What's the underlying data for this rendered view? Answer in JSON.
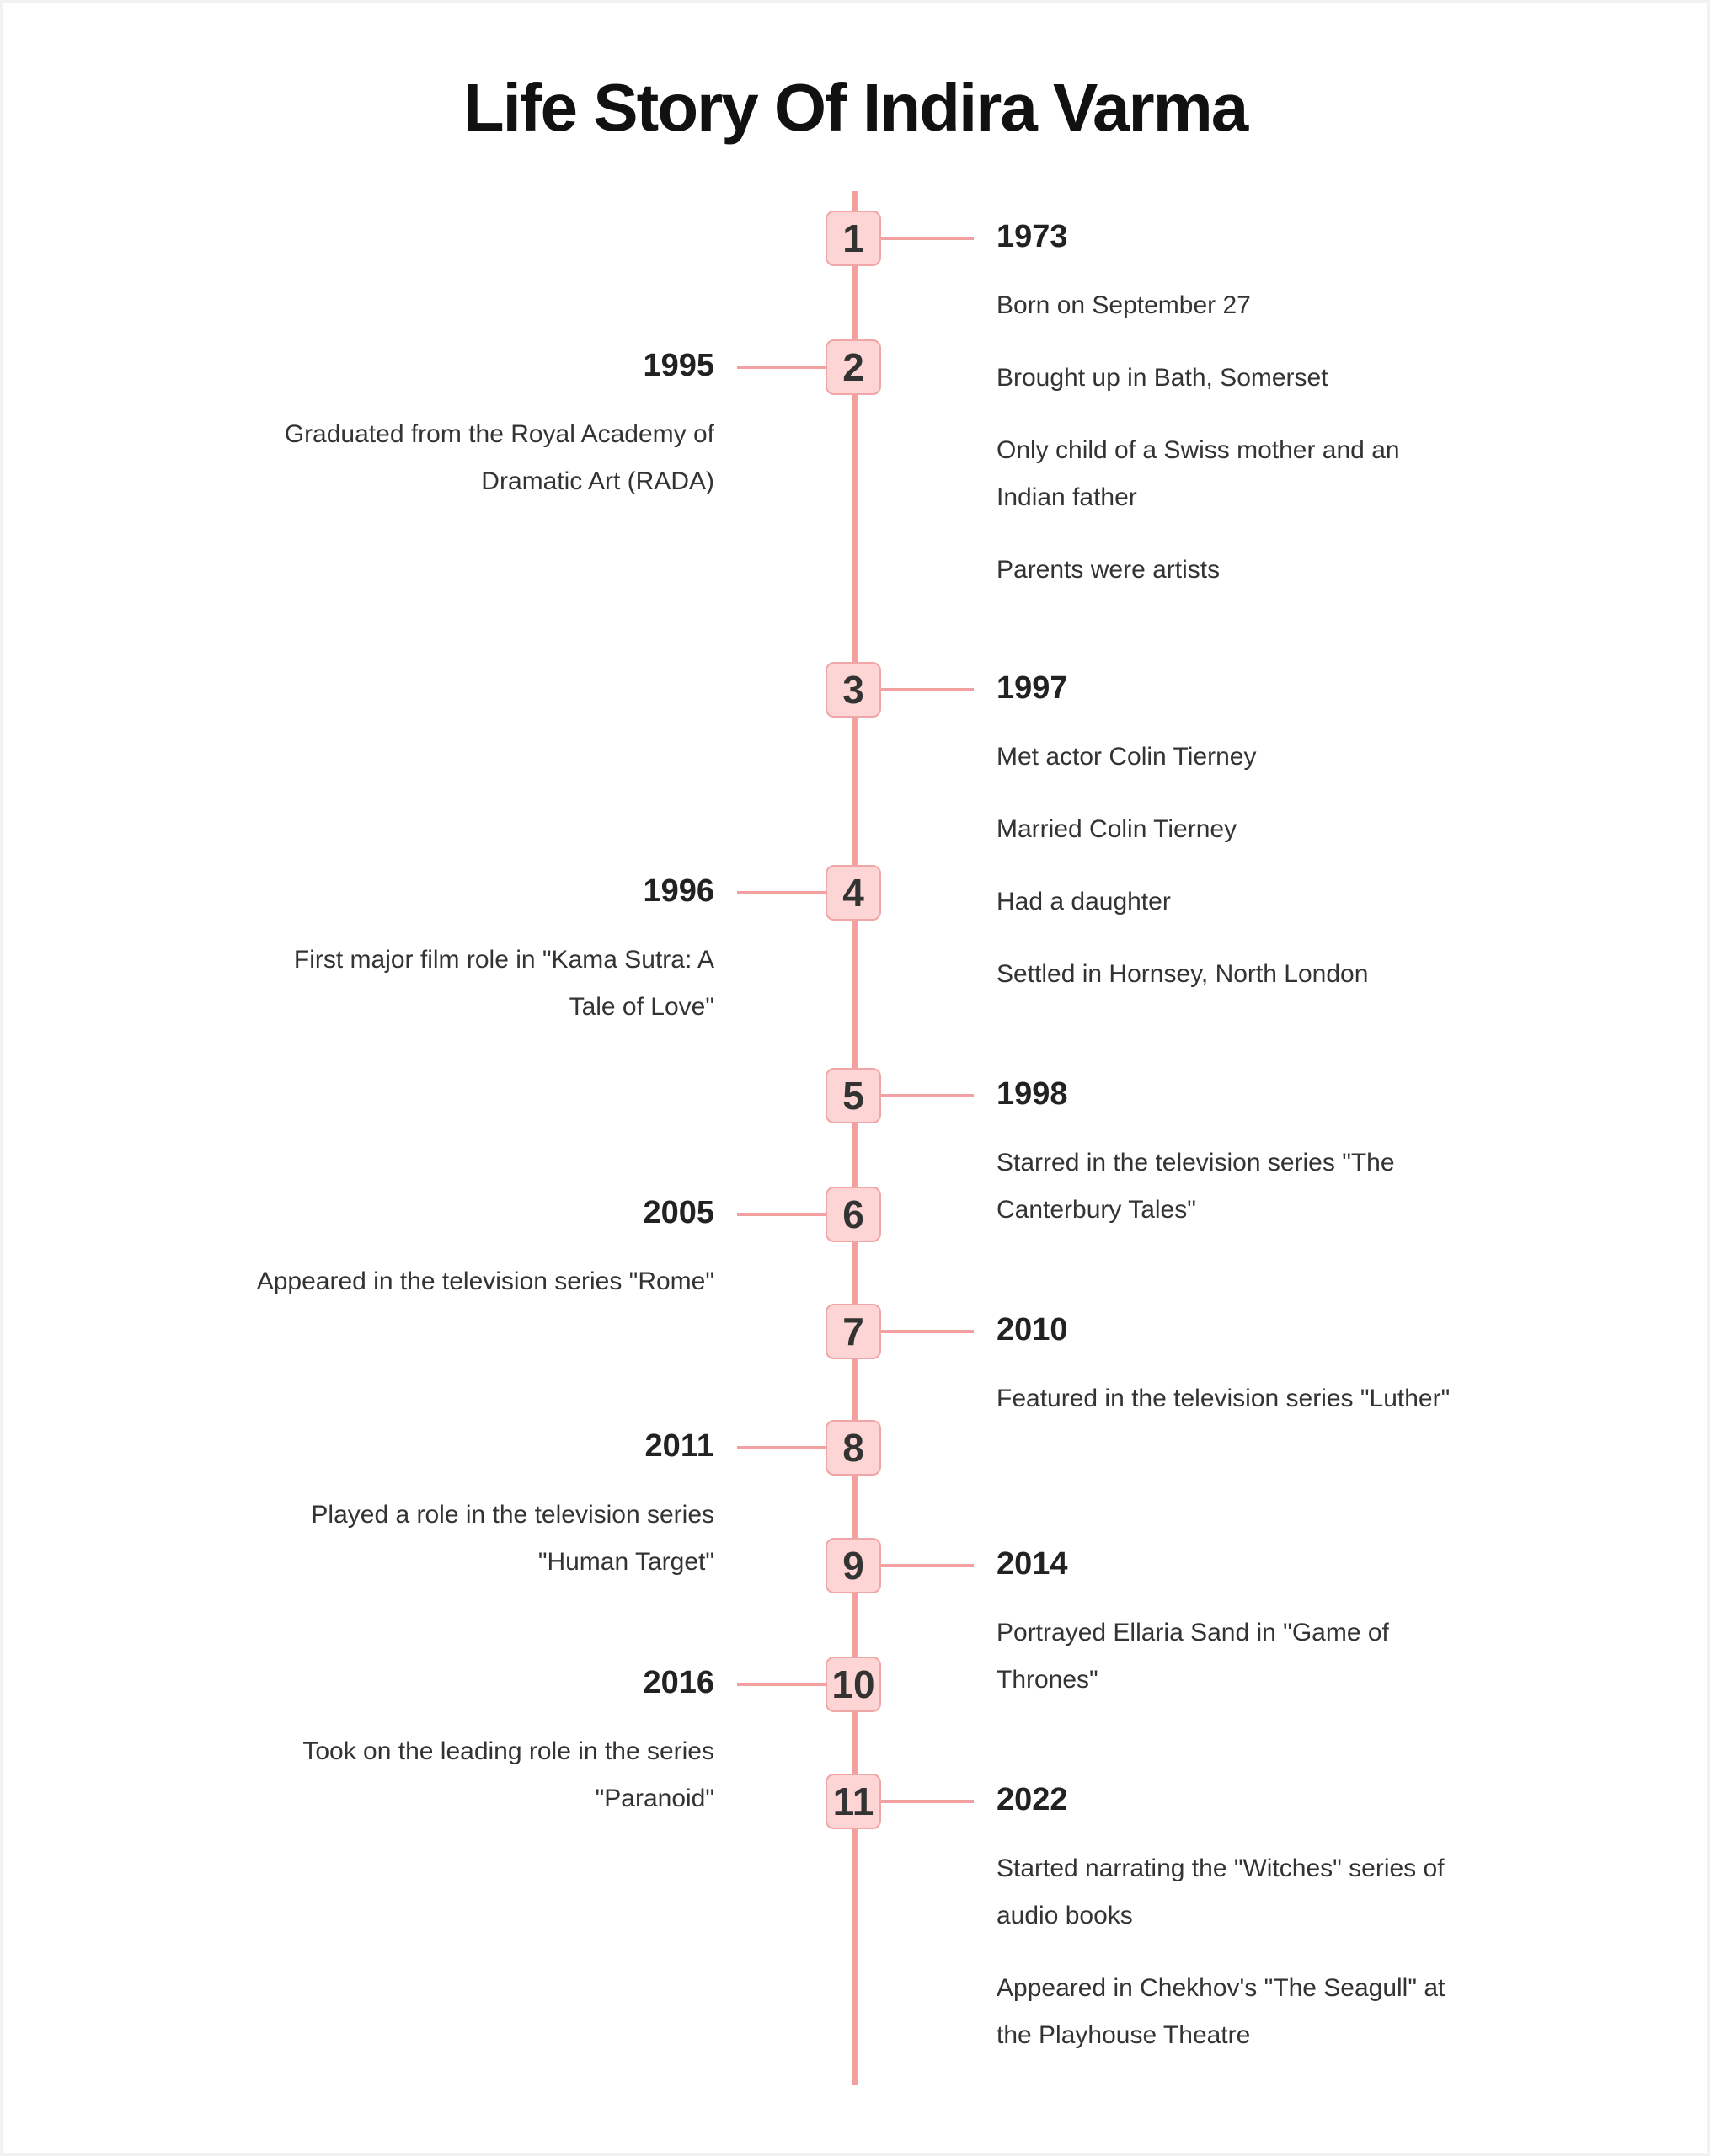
{
  "title": "Life Story Of Indira Varma",
  "colors": {
    "line": "#f2a0a0",
    "node_fill": "#fdd5d5",
    "node_border": "#f0a6a6"
  },
  "events": [
    {
      "num": "1",
      "side": "right",
      "year": "1973",
      "items": [
        "Born on September 27",
        "Brought up in Bath, Somerset",
        "Only child of a Swiss mother and an Indian father",
        "Parents were artists"
      ]
    },
    {
      "num": "2",
      "side": "left",
      "year": "1995",
      "items": [
        "Graduated from the Royal Academy of Dramatic Art (RADA)"
      ]
    },
    {
      "num": "3",
      "side": "right",
      "year": "1997",
      "items": [
        "Met actor Colin Tierney",
        "Married Colin Tierney",
        "Had a daughter",
        "Settled in Hornsey, North London"
      ]
    },
    {
      "num": "4",
      "side": "left",
      "year": "1996",
      "items": [
        "First major film role in \"Kama Sutra: A Tale of Love\""
      ]
    },
    {
      "num": "5",
      "side": "right",
      "year": "1998",
      "items": [
        "Starred in the television series \"The Canterbury Tales\""
      ]
    },
    {
      "num": "6",
      "side": "left",
      "year": "2005",
      "items": [
        "Appeared in the television series \"Rome\""
      ]
    },
    {
      "num": "7",
      "side": "right",
      "year": "2010",
      "items": [
        "Featured in the television series \"Luther\""
      ]
    },
    {
      "num": "8",
      "side": "left",
      "year": "2011",
      "items": [
        "Played a role in the television series \"Human Target\""
      ]
    },
    {
      "num": "9",
      "side": "right",
      "year": "2014",
      "items": [
        "Portrayed Ellaria Sand in \"Game of Thrones\""
      ]
    },
    {
      "num": "10",
      "side": "left",
      "year": "2016",
      "items": [
        "Took on the leading role in the series \"Paranoid\""
      ]
    },
    {
      "num": "11",
      "side": "right",
      "year": "2022",
      "items": [
        "Started narrating the \"Witches\" series of audio books",
        "Appeared in Chekhov's \"The Seagull\" at the Playhouse Theatre"
      ]
    }
  ]
}
